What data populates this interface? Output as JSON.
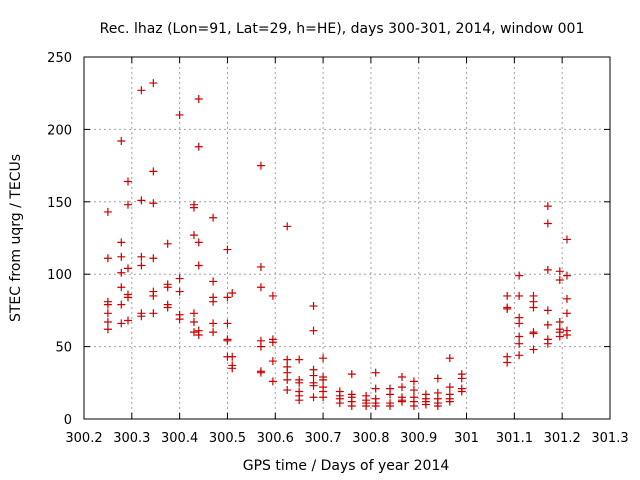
{
  "chart_data": {
    "type": "scatter",
    "title": "Rec. lhaz (Lon=91, Lat=29, h=HE), days 300-301, 2014, window 001",
    "xlabel": "GPS time / Days of year 2014",
    "ylabel": "STEC from uqrg / TECUs",
    "xlim": [
      300.2,
      301.3
    ],
    "ylim": [
      0,
      250
    ],
    "xticks": [
      300.2,
      300.3,
      300.4,
      300.5,
      300.6,
      300.7,
      300.8,
      300.9,
      301,
      301.1,
      301.2,
      301.3
    ],
    "xtick_labels": [
      "300.2",
      "300.3",
      "300.4",
      "300.5",
      "300.6",
      "300.7",
      "300.8",
      "300.9",
      "301",
      "301.1",
      "301.2",
      "301.3"
    ],
    "yticks": [
      0,
      50,
      100,
      150,
      200,
      250
    ],
    "ytick_labels": [
      "0",
      "50",
      "100",
      "150",
      "200",
      "250"
    ],
    "grid": true,
    "marker": "+",
    "color": "#cc0000",
    "series": [
      {
        "name": "",
        "points": [
          [
            300.25,
            143
          ],
          [
            300.25,
            111
          ],
          [
            300.25,
            81
          ],
          [
            300.25,
            79
          ],
          [
            300.25,
            73
          ],
          [
            300.25,
            67
          ],
          [
            300.25,
            62
          ],
          [
            300.278,
            192
          ],
          [
            300.278,
            122
          ],
          [
            300.278,
            112
          ],
          [
            300.278,
            101
          ],
          [
            300.278,
            91
          ],
          [
            300.278,
            79
          ],
          [
            300.278,
            66
          ],
          [
            300.292,
            164
          ],
          [
            300.292,
            148
          ],
          [
            300.292,
            104
          ],
          [
            300.292,
            86
          ],
          [
            300.292,
            84
          ],
          [
            300.292,
            68
          ],
          [
            300.32,
            227
          ],
          [
            300.32,
            151
          ],
          [
            300.32,
            112
          ],
          [
            300.32,
            106
          ],
          [
            300.32,
            73
          ],
          [
            300.32,
            71
          ],
          [
            300.345,
            232
          ],
          [
            300.345,
            171
          ],
          [
            300.345,
            149
          ],
          [
            300.345,
            111
          ],
          [
            300.345,
            88
          ],
          [
            300.345,
            85
          ],
          [
            300.345,
            73
          ],
          [
            300.375,
            121
          ],
          [
            300.375,
            93
          ],
          [
            300.375,
            91
          ],
          [
            300.375,
            79
          ],
          [
            300.375,
            77
          ],
          [
            300.4,
            210
          ],
          [
            300.4,
            97
          ],
          [
            300.4,
            88
          ],
          [
            300.4,
            72
          ],
          [
            300.4,
            69
          ],
          [
            300.43,
            148
          ],
          [
            300.43,
            146
          ],
          [
            300.43,
            127
          ],
          [
            300.43,
            73
          ],
          [
            300.43,
            67
          ],
          [
            300.43,
            60
          ],
          [
            300.44,
            221
          ],
          [
            300.44,
            188
          ],
          [
            300.44,
            122
          ],
          [
            300.44,
            106
          ],
          [
            300.44,
            61
          ],
          [
            300.44,
            58
          ],
          [
            300.47,
            139
          ],
          [
            300.47,
            95
          ],
          [
            300.47,
            84
          ],
          [
            300.47,
            81
          ],
          [
            300.47,
            66
          ],
          [
            300.47,
            60
          ],
          [
            300.5,
            117
          ],
          [
            300.5,
            84
          ],
          [
            300.5,
            66
          ],
          [
            300.5,
            55
          ],
          [
            300.5,
            54
          ],
          [
            300.5,
            43
          ],
          [
            300.51,
            87
          ],
          [
            300.51,
            43
          ],
          [
            300.51,
            37
          ],
          [
            300.51,
            35
          ],
          [
            300.57,
            175
          ],
          [
            300.57,
            105
          ],
          [
            300.57,
            91
          ],
          [
            300.57,
            54
          ],
          [
            300.57,
            50
          ],
          [
            300.57,
            33
          ],
          [
            300.57,
            32
          ],
          [
            300.595,
            85
          ],
          [
            300.595,
            55
          ],
          [
            300.595,
            53
          ],
          [
            300.595,
            40
          ],
          [
            300.595,
            26
          ],
          [
            300.625,
            133
          ],
          [
            300.625,
            41
          ],
          [
            300.625,
            36
          ],
          [
            300.625,
            32
          ],
          [
            300.625,
            27
          ],
          [
            300.625,
            20
          ],
          [
            300.65,
            41
          ],
          [
            300.65,
            27
          ],
          [
            300.65,
            25
          ],
          [
            300.65,
            19
          ],
          [
            300.65,
            16
          ],
          [
            300.65,
            13
          ],
          [
            300.68,
            78
          ],
          [
            300.68,
            61
          ],
          [
            300.68,
            34
          ],
          [
            300.68,
            30
          ],
          [
            300.68,
            25
          ],
          [
            300.68,
            23
          ],
          [
            300.68,
            15
          ],
          [
            300.7,
            42
          ],
          [
            300.7,
            29
          ],
          [
            300.7,
            27
          ],
          [
            300.7,
            22
          ],
          [
            300.7,
            19
          ],
          [
            300.7,
            15
          ],
          [
            300.735,
            19
          ],
          [
            300.735,
            16
          ],
          [
            300.735,
            14
          ],
          [
            300.735,
            11
          ],
          [
            300.76,
            31
          ],
          [
            300.76,
            17
          ],
          [
            300.76,
            15
          ],
          [
            300.76,
            12
          ],
          [
            300.76,
            9
          ],
          [
            300.79,
            16
          ],
          [
            300.79,
            13
          ],
          [
            300.79,
            11
          ],
          [
            300.79,
            9
          ],
          [
            300.81,
            32
          ],
          [
            300.81,
            21
          ],
          [
            300.81,
            14
          ],
          [
            300.81,
            11
          ],
          [
            300.81,
            9
          ],
          [
            300.84,
            21
          ],
          [
            300.84,
            17
          ],
          [
            300.84,
            11
          ],
          [
            300.84,
            9
          ],
          [
            300.865,
            29
          ],
          [
            300.865,
            22
          ],
          [
            300.865,
            15
          ],
          [
            300.865,
            13
          ],
          [
            300.865,
            12
          ],
          [
            300.89,
            26
          ],
          [
            300.89,
            20
          ],
          [
            300.89,
            15
          ],
          [
            300.89,
            12
          ],
          [
            300.89,
            9
          ],
          [
            300.915,
            17
          ],
          [
            300.915,
            14
          ],
          [
            300.915,
            12
          ],
          [
            300.915,
            10
          ],
          [
            300.94,
            28
          ],
          [
            300.94,
            18
          ],
          [
            300.94,
            14
          ],
          [
            300.94,
            11
          ],
          [
            300.94,
            9
          ],
          [
            300.965,
            42
          ],
          [
            300.965,
            22
          ],
          [
            300.965,
            17
          ],
          [
            300.965,
            14
          ],
          [
            300.965,
            12
          ],
          [
            300.99,
            31
          ],
          [
            300.99,
            28
          ],
          [
            300.99,
            21
          ],
          [
            300.99,
            19
          ],
          [
            301.085,
            85
          ],
          [
            301.085,
            77
          ],
          [
            301.085,
            76
          ],
          [
            301.085,
            43
          ],
          [
            301.085,
            39
          ],
          [
            301.11,
            99
          ],
          [
            301.11,
            85
          ],
          [
            301.11,
            70
          ],
          [
            301.11,
            66
          ],
          [
            301.11,
            57
          ],
          [
            301.11,
            52
          ],
          [
            301.11,
            44
          ],
          [
            301.14,
            85
          ],
          [
            301.14,
            81
          ],
          [
            301.14,
            77
          ],
          [
            301.14,
            60
          ],
          [
            301.14,
            59
          ],
          [
            301.14,
            48
          ],
          [
            301.17,
            147
          ],
          [
            301.17,
            135
          ],
          [
            301.17,
            103
          ],
          [
            301.17,
            75
          ],
          [
            301.17,
            65
          ],
          [
            301.17,
            55
          ],
          [
            301.17,
            52
          ],
          [
            301.195,
            102
          ],
          [
            301.195,
            96
          ],
          [
            301.195,
            67
          ],
          [
            301.195,
            62
          ],
          [
            301.195,
            60
          ],
          [
            301.195,
            57
          ],
          [
            301.21,
            124
          ],
          [
            301.21,
            99
          ],
          [
            301.21,
            83
          ],
          [
            301.21,
            73
          ],
          [
            301.21,
            61
          ],
          [
            301.21,
            58
          ]
        ]
      }
    ]
  }
}
